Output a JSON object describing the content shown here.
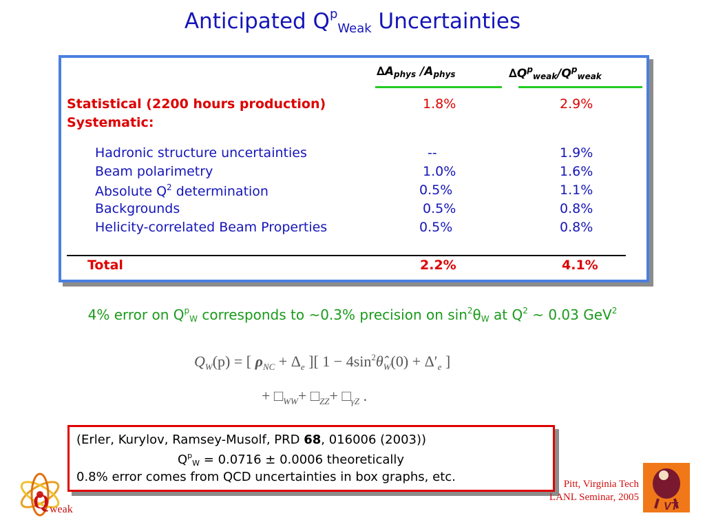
{
  "title": {
    "main": "Anticipated Q",
    "sup": "p",
    "sub": "Weak",
    "rest": " Uncertainties"
  },
  "table": {
    "header_a": {
      "delta": "∆",
      "a1": "A",
      "sub1": "phys",
      "slash": " /A",
      "sub2": "phys"
    },
    "header_q": {
      "delta": "∆",
      "q1": "Q",
      "sup1": "p",
      "sub1": "weak",
      "slash": "/Q",
      "sup2": "p",
      "sub2": "weak"
    },
    "statistical": {
      "label": "Statistical (2200 hours production)",
      "a": "1.8%",
      "q": "2.9%"
    },
    "systematic_label": "Systematic:",
    "rows": [
      {
        "label": "Hadronic structure uncertainties",
        "a": "--",
        "q": "1.9%"
      },
      {
        "label": "Beam polarimetry",
        "a": "1.0%",
        "q": "1.6%"
      },
      {
        "label_pre": "Absolute Q",
        "label_sup": "2",
        "label_post": " determination",
        "a": "0.5%",
        "q": "1.1%"
      },
      {
        "label": "Backgrounds",
        "a": "0.5%",
        "q": "0.8%"
      },
      {
        "label": "Helicity-correlated Beam Properties",
        "a": "0.5%",
        "q": "0.8%"
      }
    ],
    "total": {
      "label": "Total",
      "a": "2.2%",
      "q": "4.1%"
    }
  },
  "note": {
    "p1": "4% error on Q",
    "sup1": "p",
    "sub1": "W",
    "p2": " corresponds to ~0.3% precision on sin",
    "sup2": "2",
    "theta": "θ",
    "sub2": "W",
    "p3": " at Q",
    "sup3": "2",
    "p4": " ~ 0.03 GeV",
    "sup4": "2"
  },
  "equation": {
    "line1_lhs": "Q",
    "line1_sub": "W",
    "line1_arg": "(p) = [ ",
    "rho": "ρ",
    "rho_sub": "NC",
    "plus_delta": " + Δ",
    "delta_sub": "e",
    "bracket2": " ][ 1 − 4sin",
    "sin_sup": "2",
    "theta_hat": "θ̂",
    "theta_sub": "W",
    "theta_arg": "(0) + Δ′",
    "delta2_sub": "e",
    "close": " ]",
    "line2_plus": "+ □",
    "box_ww": "WW",
    "box_zz": "ZZ",
    "box_gz": "γZ",
    "line2_end": " ."
  },
  "reference": {
    "line1_pre": "(Erler, Kurylov, Ramsey-Musolf, PRD ",
    "line1_bold": "68",
    "line1_post": ", 016006 (2003))",
    "line2_q": "Q",
    "line2_sup": "p",
    "line2_sub": "W",
    "line2_rest": " = 0.0716 ± 0.0006   theoretically",
    "line3": "0.8% error comes from QCD uncertainties in box graphs, etc."
  },
  "footer": {
    "line1": "Pitt, Virginia Tech",
    "line2": "LANL Seminar, 2005"
  },
  "logo_left": {
    "q_letter": "Q",
    "text": "weak"
  },
  "logo_right": {
    "text": "VT"
  },
  "colors": {
    "title_blue": "#1515b8",
    "red": "#dd0000",
    "green_note": "#1a9a1a",
    "underline_green": "#22cc22",
    "box_blue": "#4a7fe0",
    "ref_red": "#e00000"
  }
}
